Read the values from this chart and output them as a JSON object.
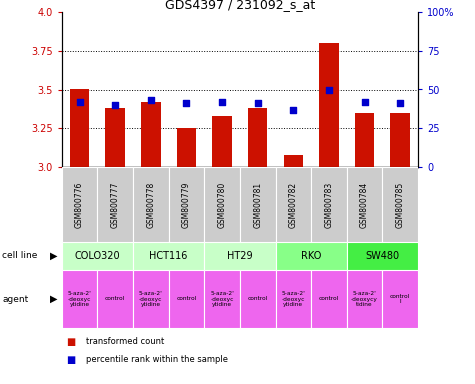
{
  "title": "GDS4397 / 231092_s_at",
  "samples": [
    "GSM800776",
    "GSM800777",
    "GSM800778",
    "GSM800779",
    "GSM800780",
    "GSM800781",
    "GSM800782",
    "GSM800783",
    "GSM800784",
    "GSM800785"
  ],
  "red_values": [
    3.5,
    3.38,
    3.42,
    3.25,
    3.33,
    3.38,
    3.08,
    3.8,
    3.35,
    3.35
  ],
  "blue_values": [
    42,
    40,
    43,
    41,
    42,
    41,
    37,
    50,
    42,
    41
  ],
  "ylim": [
    3.0,
    4.0
  ],
  "y_ticks": [
    3.0,
    3.25,
    3.5,
    3.75,
    4.0
  ],
  "y2_ticks": [
    0,
    25,
    50,
    75,
    100
  ],
  "y2_tick_labels": [
    "0",
    "25",
    "50",
    "75",
    "100%"
  ],
  "cell_lines": [
    {
      "label": "COLO320",
      "start": 0,
      "end": 2,
      "color": "#c8ffc8"
    },
    {
      "label": "HCT116",
      "start": 2,
      "end": 4,
      "color": "#c8ffc8"
    },
    {
      "label": "HT29",
      "start": 4,
      "end": 6,
      "color": "#c8ffc8"
    },
    {
      "label": "RKO",
      "start": 6,
      "end": 8,
      "color": "#88ff88"
    },
    {
      "label": "SW480",
      "start": 8,
      "end": 10,
      "color": "#44ee44"
    }
  ],
  "agents": [
    {
      "label": "5-aza-2'\n-deoxyc\nytidine",
      "start": 0,
      "end": 1
    },
    {
      "label": "control",
      "start": 1,
      "end": 2
    },
    {
      "label": "5-aza-2'\n-deoxyc\nytidine",
      "start": 2,
      "end": 3
    },
    {
      "label": "control",
      "start": 3,
      "end": 4
    },
    {
      "label": "5-aza-2'\n-deoxyc\nytidine",
      "start": 4,
      "end": 5
    },
    {
      "label": "control",
      "start": 5,
      "end": 6
    },
    {
      "label": "5-aza-2'\n-deoxyc\nytidine",
      "start": 6,
      "end": 7
    },
    {
      "label": "control",
      "start": 7,
      "end": 8
    },
    {
      "label": "5-aza-2'\n-deoxycy\ntidine",
      "start": 8,
      "end": 9
    },
    {
      "label": "control\nl",
      "start": 9,
      "end": 10
    }
  ],
  "agent_color": "#ee66ee",
  "bar_color": "#cc1100",
  "dot_color": "#0000cc",
  "sample_bg_color": "#cccccc",
  "left_label_color": "#cc0000",
  "right_label_color": "#0000cc"
}
